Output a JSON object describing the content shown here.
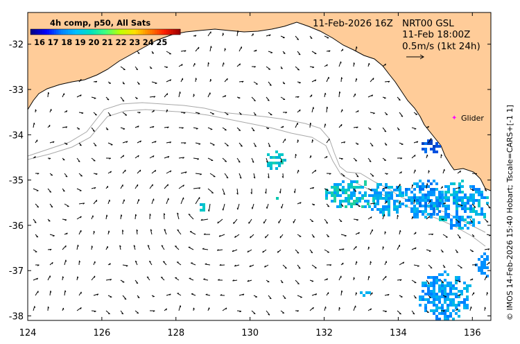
{
  "map": {
    "x_ticks": [
      "124",
      "126",
      "128",
      "130",
      "132",
      "134",
      "136"
    ],
    "x_values": [
      124,
      126,
      128,
      130,
      132,
      134,
      136
    ],
    "y_ticks": [
      "-32",
      "-33",
      "-34",
      "-35",
      "-36",
      "-37",
      "-38"
    ],
    "y_values": [
      -32,
      -33,
      -34,
      -35,
      -36,
      -37,
      -38
    ],
    "lon_range": [
      124,
      136.5
    ],
    "lat_range": [
      -38.1,
      -31.3
    ],
    "land_color": "#ffcc99",
    "ocean_color": "#ffffff"
  },
  "legend": {
    "title": "4h comp, p50, All Sats",
    "labels": [
      "16",
      "17",
      "18",
      "19",
      "20",
      "21",
      "22",
      "23",
      "24",
      "25"
    ],
    "colors": [
      "#00008b",
      "#0000ff",
      "#0080ff",
      "#00c0ff",
      "#00e0c0",
      "#40ff80",
      "#c0ff00",
      "#ffe000",
      "#ff8000",
      "#ff2000",
      "#a00000"
    ]
  },
  "info": {
    "date_label": "11-Feb-2026 16Z",
    "product_label": "NRT00 GSL",
    "time_label": "11-Feb 18:00Z",
    "scale_label": "0.5m/s (1kt 24h)"
  },
  "glider": {
    "label": "Glider",
    "color": "#ff00ff"
  },
  "credit": {
    "text": "© IMOS 14-Feb-2026 15:40 Hobart; Tscale=CARS+[-1 1]"
  }
}
